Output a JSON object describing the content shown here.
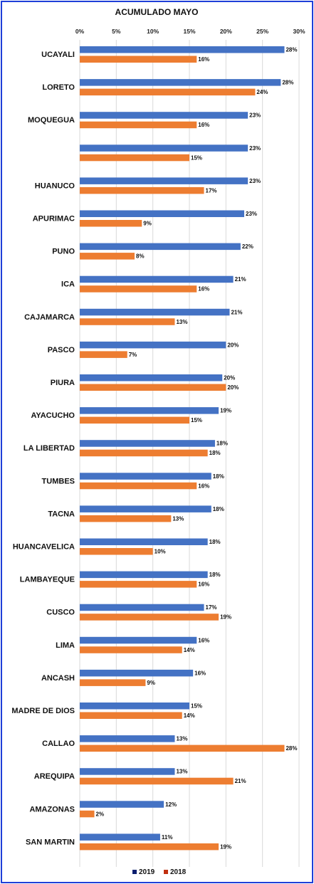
{
  "chart_data": {
    "type": "bar",
    "orientation": "horizontal",
    "title": "ACUMULADO MAYO",
    "xlim": [
      0,
      30
    ],
    "x_ticks": [
      "0%",
      "5%",
      "10%",
      "15%",
      "20%",
      "25%",
      "30%"
    ],
    "x_axis_position": "top",
    "grid": true,
    "legend_position": "bottom",
    "categories": [
      "UCAYALI",
      "LORETO",
      "MOQUEGUA",
      "",
      "HUANUCO",
      "APURIMAC",
      "PUNO",
      "ICA",
      "CAJAMARCA",
      "PASCO",
      "PIURA",
      "AYACUCHO",
      "LA LIBERTAD",
      "TUMBES",
      "TACNA",
      "HUANCAVELICA",
      "LAMBAYEQUE",
      "CUSCO",
      "LIMA",
      "ANCASH",
      "MADRE DE DIOS",
      "CALLAO",
      "AREQUIPA",
      "AMAZONAS",
      "SAN MARTIN"
    ],
    "series": [
      {
        "name": "2019",
        "color": "#4472c4",
        "values": [
          28,
          27.5,
          23,
          23,
          23,
          22.5,
          22,
          21,
          20.5,
          20,
          19.5,
          19,
          18.5,
          18,
          18,
          17.5,
          17.5,
          17,
          16,
          15.5,
          15,
          13,
          13,
          11.5,
          11
        ],
        "labels": [
          "28%",
          "28%",
          "23%",
          "23%",
          "23%",
          "23%",
          "22%",
          "21%",
          "21%",
          "20%",
          "20%",
          "19%",
          "18%",
          "18%",
          "18%",
          "18%",
          "18%",
          "17%",
          "16%",
          "16%",
          "15%",
          "13%",
          "13%",
          "12%",
          "11%"
        ]
      },
      {
        "name": "2018",
        "color": "#ed7d31",
        "values": [
          16,
          24,
          16,
          15,
          17,
          8.5,
          7.5,
          16,
          13,
          6.5,
          20,
          15,
          17.5,
          16,
          12.5,
          10,
          16,
          19,
          14,
          9,
          14,
          28,
          21,
          2,
          19
        ],
        "labels": [
          "16%",
          "24%",
          "16%",
          "15%",
          "17%",
          "9%",
          "8%",
          "16%",
          "13%",
          "7%",
          "20%",
          "15%",
          "18%",
          "16%",
          "13%",
          "10%",
          "16%",
          "19%",
          "14%",
          "9%",
          "14%",
          "28%",
          "21%",
          "2%",
          "19%"
        ]
      }
    ],
    "legend": [
      {
        "name": "2019",
        "color": "#0b1e6e"
      },
      {
        "name": "2018",
        "color": "#c0300f"
      }
    ]
  }
}
